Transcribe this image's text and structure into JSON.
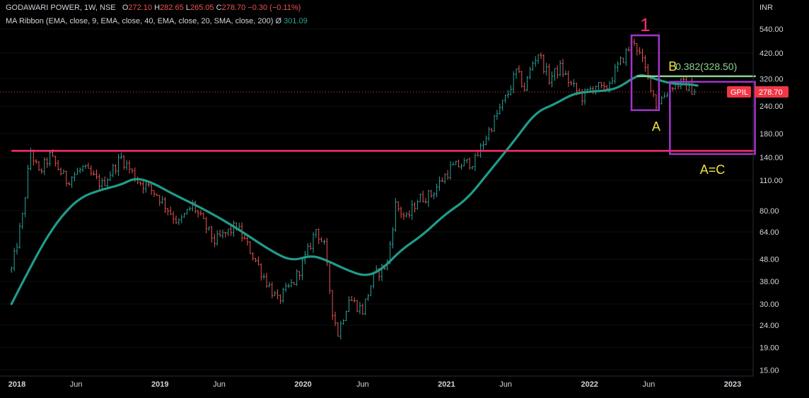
{
  "header": {
    "symbol_line": "GODAWARI POWER, 1W, NSE",
    "o_label": "O",
    "o_value": "272.10",
    "h_label": "H",
    "h_value": "282.65",
    "l_label": "L",
    "l_value": "265.05",
    "c_label": "C",
    "c_value": "278.70",
    "change": "−0.30 (−0.11%)",
    "indicator": "MA Ribbon (EMA, close, 9, EMA, close, 40, EMA, close, 20, SMA, close, 200)",
    "indicator_symbol": "Ø",
    "indicator_value": "301.09"
  },
  "currency": "INR",
  "price_tag": {
    "symbol": "GPIL",
    "value": "278.70",
    "price": 278.7,
    "color": "#f23645"
  },
  "colors": {
    "background": "#000000",
    "up": "#26a69a",
    "down": "#ef5350",
    "ma": "#1f9c8a",
    "support": "#ff2d6e",
    "box": "#a335c9",
    "fib": "#8fd18f",
    "annotation": "#f0e442",
    "wave1": "#ff2d6e",
    "text": "#d1d4dc"
  },
  "annotations": {
    "wave1": "1",
    "pointA": "A",
    "pointB": "B",
    "fib": "0.382(328.50)",
    "ac": "A=C"
  },
  "chart_data": {
    "type": "ohlc-bar",
    "scale": "log",
    "interval": "1W",
    "ylim": [
      15,
      650
    ],
    "xlim": [
      "2018-01-01",
      "2023-03-15"
    ],
    "y_ticks": [
      15,
      19,
      24,
      30,
      38,
      48,
      64,
      80,
      110,
      140,
      180,
      240,
      320,
      420,
      540
    ],
    "y_tick_labels": [
      "15.00",
      "19.00",
      "24.00",
      "30.00",
      "38.00",
      "48.00",
      "64.00",
      "80.00",
      "110.00",
      "140.00",
      "180.00",
      "240.00",
      "320.00",
      "420.00",
      "540.00"
    ],
    "x_ticks": [
      {
        "date": "2018-01-01",
        "label": "2018",
        "bold": true
      },
      {
        "date": "2018-06-01",
        "label": "Jun",
        "bold": false
      },
      {
        "date": "2019-01-01",
        "label": "2019",
        "bold": true
      },
      {
        "date": "2019-06-01",
        "label": "Jun",
        "bold": false
      },
      {
        "date": "2020-01-01",
        "label": "2020",
        "bold": true
      },
      {
        "date": "2020-06-01",
        "label": "Jun",
        "bold": false
      },
      {
        "date": "2021-01-01",
        "label": "2021",
        "bold": true
      },
      {
        "date": "2021-06-01",
        "label": "Jun",
        "bold": false
      },
      {
        "date": "2022-01-01",
        "label": "2022",
        "bold": true
      },
      {
        "date": "2022-06-01",
        "label": "Jun",
        "bold": false
      },
      {
        "date": "2023-01-01",
        "label": "2023",
        "bold": true
      }
    ],
    "price_path": [
      [
        "2017-12-18",
        43
      ],
      [
        "2018-01-15",
        75
      ],
      [
        "2018-02-05",
        150
      ],
      [
        "2018-02-26",
        118
      ],
      [
        "2018-03-26",
        142
      ],
      [
        "2018-05-07",
        110
      ],
      [
        "2018-06-18",
        125
      ],
      [
        "2018-08-06",
        105
      ],
      [
        "2018-09-24",
        140
      ],
      [
        "2018-11-05",
        110
      ],
      [
        "2018-12-24",
        95
      ],
      [
        "2019-02-18",
        70
      ],
      [
        "2019-03-25",
        85
      ],
      [
        "2019-05-20",
        58
      ],
      [
        "2019-07-15",
        68
      ],
      [
        "2019-08-26",
        50
      ],
      [
        "2019-09-23",
        40
      ],
      [
        "2019-10-28",
        31
      ],
      [
        "2019-12-09",
        38
      ],
      [
        "2020-01-13",
        52
      ],
      [
        "2020-02-03",
        66
      ],
      [
        "2020-02-24",
        55
      ],
      [
        "2020-03-16",
        28
      ],
      [
        "2020-03-30",
        22
      ],
      [
        "2020-04-27",
        32
      ],
      [
        "2020-06-01",
        28
      ],
      [
        "2020-06-29",
        40
      ],
      [
        "2020-08-03",
        46
      ],
      [
        "2020-08-24",
        85
      ],
      [
        "2020-09-21",
        73
      ],
      [
        "2020-10-19",
        90
      ],
      [
        "2020-11-23",
        95
      ],
      [
        "2021-01-11",
        125
      ],
      [
        "2021-02-08",
        130
      ],
      [
        "2021-03-15",
        135
      ],
      [
        "2021-04-12",
        175
      ],
      [
        "2021-05-10",
        220
      ],
      [
        "2021-06-07",
        275
      ],
      [
        "2021-06-28",
        345
      ],
      [
        "2021-07-19",
        290
      ],
      [
        "2021-08-09",
        380
      ],
      [
        "2021-08-23",
        420
      ],
      [
        "2021-09-20",
        320
      ],
      [
        "2021-10-18",
        360
      ],
      [
        "2021-11-15",
        300
      ],
      [
        "2021-12-13",
        265
      ],
      [
        "2022-01-17",
        300
      ],
      [
        "2022-02-07",
        280
      ],
      [
        "2022-03-07",
        345
      ],
      [
        "2022-04-04",
        420
      ],
      [
        "2022-04-25",
        480
      ],
      [
        "2022-05-16",
        380
      ],
      [
        "2022-06-06",
        300
      ],
      [
        "2022-06-20",
        245
      ],
      [
        "2022-07-11",
        270
      ],
      [
        "2022-08-01",
        300
      ],
      [
        "2022-08-22",
        305
      ],
      [
        "2022-09-12",
        295
      ],
      [
        "2022-09-26",
        278.7
      ]
    ],
    "ma_path": [
      [
        "2017-12-18",
        30
      ],
      [
        "2018-01-29",
        42
      ],
      [
        "2018-03-12",
        58
      ],
      [
        "2018-04-23",
        75
      ],
      [
        "2018-06-11",
        92
      ],
      [
        "2018-08-06",
        100
      ],
      [
        "2018-09-24",
        105
      ],
      [
        "2018-10-29",
        113
      ],
      [
        "2018-12-10",
        108
      ],
      [
        "2019-02-04",
        95
      ],
      [
        "2019-04-01",
        85
      ],
      [
        "2019-06-03",
        74
      ],
      [
        "2019-08-05",
        63
      ],
      [
        "2019-10-07",
        53
      ],
      [
        "2019-12-02",
        47
      ],
      [
        "2020-01-20",
        50
      ],
      [
        "2020-02-24",
        48
      ],
      [
        "2020-04-20",
        43
      ],
      [
        "2020-06-08",
        40
      ],
      [
        "2020-07-20",
        43
      ],
      [
        "2020-09-07",
        53
      ],
      [
        "2020-11-02",
        62
      ],
      [
        "2020-12-28",
        77
      ],
      [
        "2021-02-22",
        90
      ],
      [
        "2021-04-19",
        120
      ],
      [
        "2021-06-21",
        165
      ],
      [
        "2021-08-16",
        225
      ],
      [
        "2021-10-04",
        245
      ],
      [
        "2021-11-22",
        275
      ],
      [
        "2022-01-10",
        280
      ],
      [
        "2022-03-07",
        285
      ],
      [
        "2022-04-25",
        325
      ],
      [
        "2022-05-16",
        335
      ],
      [
        "2022-06-20",
        318
      ],
      [
        "2022-08-01",
        303
      ],
      [
        "2022-09-12",
        302
      ],
      [
        "2022-10-03",
        298
      ]
    ],
    "support_line": {
      "price": 150,
      "from": "2017-12-18",
      "to": "2023-03-01"
    },
    "fib_level": {
      "price": 328.5,
      "from": "2022-05-02",
      "to": "2023-03-01"
    },
    "wave1_box": {
      "date_from": "2022-04-18",
      "date_to": "2022-06-27",
      "price_low": 230,
      "price_high": 505
    },
    "ac_box": {
      "date_from": "2022-07-25",
      "date_to": "2023-02-27",
      "price_low": 145,
      "price_high": 310
    }
  }
}
